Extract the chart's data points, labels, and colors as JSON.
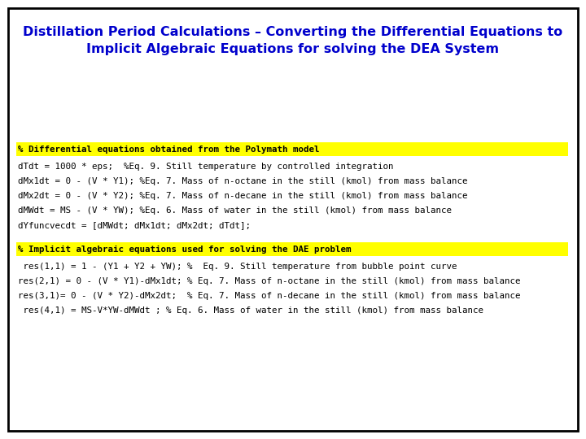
{
  "title_line1": "Distillation Period Calculations – Converting the Differential Equations to",
  "title_line2": "Implicit Algebraic Equations for solving the DEA System",
  "title_color": "#0000CC",
  "title_fontsize": 11.5,
  "bg_color": "#FFFFFF",
  "border_color": "#000000",
  "highlight_color": "#FFFF00",
  "section1_header": "% Differential equations obtained from the Polymath model",
  "section1_lines": [
    "dTdt = 1000 * eps;  %Eq. 9. Still temperature by controlled integration",
    "dMx1dt = 0 - (V * Y1); %Eq. 7. Mass of n-octane in the still (kmol) from mass balance",
    "dMx2dt = 0 - (V * Y2); %Eq. 7. Mass of n-decane in the still (kmol) from mass balance",
    "dMWdt = MS - (V * YW); %Eq. 6. Mass of water in the still (kmol) from mass balance",
    "dYfuncvecdt = [dMWdt; dMx1dt; dMx2dt; dTdt];"
  ],
  "section2_header": "% Implicit algebraic equations used for solving the DAE problem",
  "section2_lines": [
    " res(1,1) = 1 - (Y1 + Y2 + YW); %  Eq. 9. Still temperature from bubble point curve",
    "res(2,1) = 0 - (V * Y1)-dMx1dt; % Eq. 7. Mass of n-octane in the still (kmol) from mass balance",
    "res(3,1)= 0 - (V * Y2)-dMx2dt;  % Eq. 7. Mass of n-decane in the still (kmol) from mass balance",
    " res(4,1) = MS-V*YW-dMWdt ; % Eq. 6. Mass of water in the still (kmol) from mass balance"
  ],
  "code_fontsize": 7.8,
  "code_color": "#000000",
  "fig_width": 7.2,
  "fig_height": 5.4,
  "dpi": 100
}
